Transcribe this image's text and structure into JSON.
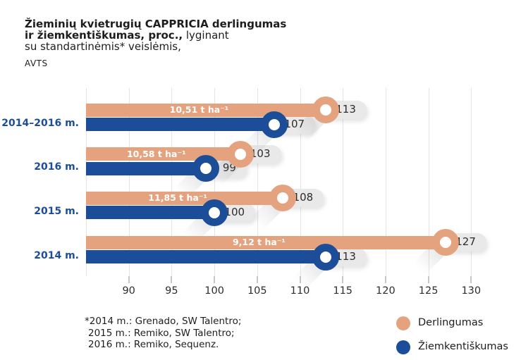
{
  "title": {
    "line1": "Žieminių kvietrugių CAPPRICIA derlingumas",
    "line2_bold": "ir žiemkentiškumas, proc.,",
    "line2_regular": " lyginant",
    "line3": "su standartinėmis* veislėmis,",
    "line4": "AVTS"
  },
  "colors": {
    "orange": "#E4A37E",
    "blue": "#1C4D99",
    "pill_bg": "#E9E9E9",
    "grid": "#E4E4E4",
    "text_dark": "#1D1D1B"
  },
  "chart_data": {
    "type": "bar",
    "orientation": "horizontal",
    "categories": [
      "2014–2016 m.",
      "2016 m.",
      "2015 m.",
      "2014 m."
    ],
    "series": [
      {
        "name": "Derlingumas",
        "color_key": "orange",
        "values": [
          113,
          103,
          108,
          127
        ],
        "bar_labels": [
          "10,51 t ha⁻¹",
          "10,58 t ha⁻¹",
          "11,85 t ha⁻¹",
          "9,12 t ha⁻¹"
        ]
      },
      {
        "name": "Žiemkentiškumas",
        "color_key": "blue",
        "values": [
          107,
          99,
          100,
          113
        ],
        "bar_labels": [
          "",
          "",
          "",
          ""
        ]
      }
    ],
    "xlim": [
      85,
      135
    ],
    "gridlines": [
      85,
      90,
      95,
      100,
      105,
      110,
      115,
      120,
      125,
      130
    ],
    "xticks": [
      90,
      95,
      100,
      105,
      110,
      115,
      120,
      125,
      130
    ],
    "grid": true,
    "legend_position": "bottom-right"
  },
  "legend": {
    "items": [
      {
        "label": "Derlingumas"
      },
      {
        "label": "Žiemkentiškumas"
      }
    ]
  },
  "footnote": {
    "lines": [
      "*2014 m.: Grenado, SW Talentro;",
      "2015 m.: Remiko, SW Talentro;",
      "2016 m.: Remiko, Sequenz."
    ]
  }
}
